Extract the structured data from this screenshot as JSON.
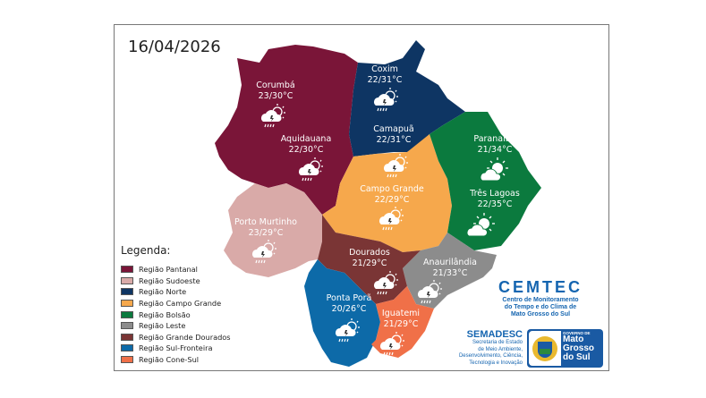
{
  "date": "16/04/2026",
  "colors": {
    "pantanal": "#7a1538",
    "sudoeste": "#d9aaa8",
    "norte": "#0e3563",
    "campo_grande": "#f6a84c",
    "bolsao": "#0b7a3e",
    "leste": "#8c8c8c",
    "grande_dourados": "#7a3535",
    "sul_fronteira": "#0d6aa8",
    "cone_sul": "#f07048"
  },
  "cities": [
    {
      "name": "Corumbá",
      "temp": "23/30°C",
      "icon": "rain-thunder-sun-icon"
    },
    {
      "name": "Aquidauana",
      "temp": "22/30°C",
      "icon": "rain-thunder-sun-icon"
    },
    {
      "name": "Coxim",
      "temp": "22/31°C",
      "icon": "rain-thunder-sun-icon"
    },
    {
      "name": "Camapuã",
      "temp": "22/31°C",
      "icon": "rain-thunder-sun-icon"
    },
    {
      "name": "Paranaíba",
      "temp": "21/34°C",
      "icon": "partly-cloudy-icon"
    },
    {
      "name": "Três Lagoas",
      "temp": "22/35°C",
      "icon": "partly-cloudy-icon"
    },
    {
      "name": "Campo Grande",
      "temp": "22/29°C",
      "icon": "rain-thunder-sun-icon"
    },
    {
      "name": "Porto Murtinho",
      "temp": "23/29°C",
      "icon": "rain-thunder-sun-icon"
    },
    {
      "name": "Dourados",
      "temp": "21/29°C",
      "icon": "rain-thunder-sun-icon"
    },
    {
      "name": "Anaurilândia",
      "temp": "21/33°C",
      "icon": "rain-thunder-sun-icon"
    },
    {
      "name": "Ponta Porã",
      "temp": "20/26°C",
      "icon": "rain-thunder-sun-icon"
    },
    {
      "name": "Iguatemi",
      "temp": "21/29°C",
      "icon": "rain-thunder-sun-icon"
    }
  ],
  "legend": {
    "title": "Legenda:",
    "items": [
      {
        "label": "Região Pantanal",
        "color": "#7a1538"
      },
      {
        "label": "Região Sudoeste",
        "color": "#d9aaa8"
      },
      {
        "label": "Região Norte",
        "color": "#0e3563"
      },
      {
        "label": "Região Campo Grande",
        "color": "#f6a84c"
      },
      {
        "label": "Região Bolsão",
        "color": "#0b7a3e"
      },
      {
        "label": "Região Leste",
        "color": "#8c8c8c"
      },
      {
        "label": "Região Grande Dourados",
        "color": "#7a3535"
      },
      {
        "label": "Região Sul-Fronteira",
        "color": "#0d6aa8"
      },
      {
        "label": "Região Cone-Sul",
        "color": "#f07048"
      }
    ]
  },
  "cemtec": {
    "name": "CEMTEC",
    "line1": "Centro de Monitoramento",
    "line2": "do Tempo e do Clima de",
    "line3": "Mato Grosso do Sul"
  },
  "semadesc": {
    "name": "SEMADESC",
    "line1": "Secretaria de Estado",
    "line2": "de Meio Ambiente,",
    "line3": "Desenvolvimento, Ciência,",
    "line4": "Tecnologia e Inovação"
  },
  "governo": {
    "small": "GOVERNO DE",
    "line1": "Mato",
    "line2": "Grosso",
    "line3": "do Sul"
  }
}
